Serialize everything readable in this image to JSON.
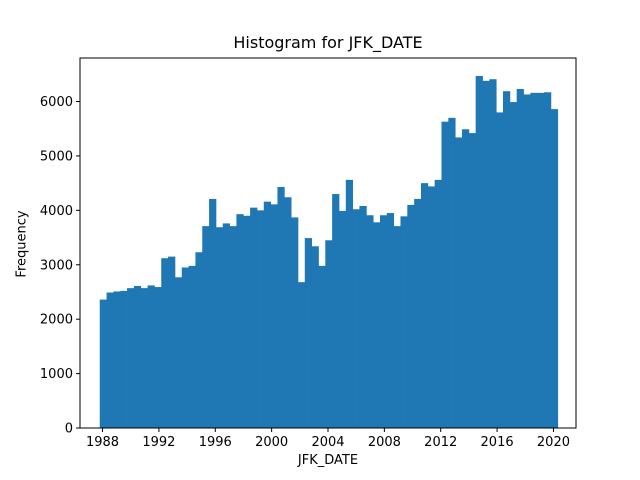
{
  "chart_data": {
    "type": "bar",
    "title": "Histogram for JFK_DATE",
    "xlabel": "JFK_DATE",
    "ylabel": "Frequency",
    "xlim": [
      1986.4,
      2021.6
    ],
    "ylim": [
      0,
      6800
    ],
    "bin_range": [
      1987.8,
      2020.3
    ],
    "xticks": [
      1988,
      1992,
      1996,
      2000,
      2004,
      2008,
      2012,
      2016,
      2020
    ],
    "yticks": [
      0,
      1000,
      2000,
      3000,
      4000,
      5000,
      6000
    ],
    "color": "#1f77b4",
    "values": [
      2360,
      2490,
      2510,
      2520,
      2570,
      2610,
      2570,
      2620,
      2590,
      3120,
      3150,
      2770,
      2950,
      2980,
      3230,
      3710,
      4210,
      3690,
      3760,
      3710,
      3930,
      3900,
      4050,
      4000,
      4160,
      4110,
      4430,
      4240,
      3870,
      2680,
      3490,
      3340,
      2980,
      3450,
      4300,
      3990,
      4560,
      4020,
      4080,
      3910,
      3780,
      3910,
      3950,
      3710,
      3890,
      4100,
      4210,
      4500,
      4440,
      4560,
      5630,
      5700,
      5340,
      5490,
      5420,
      6470,
      6380,
      6410,
      5800,
      6190,
      5990,
      6230,
      6130,
      6160,
      6160,
      6170,
      5860
    ]
  }
}
